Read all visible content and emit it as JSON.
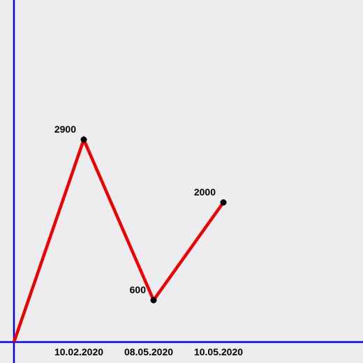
{
  "colors": {
    "background": "#ededef",
    "axis": "#0000ee",
    "line": "#ee0000",
    "point": "#000000",
    "text": "#000000"
  },
  "chart_data": {
    "type": "line",
    "x": [
      "",
      "10.02.2020",
      "08.05.2020",
      "10.05.2020"
    ],
    "series": [
      {
        "values": [
          0,
          2900,
          600,
          2000
        ],
        "data_labels": [
          "",
          "2900",
          "600",
          "2000"
        ]
      }
    ],
    "xlabel": "",
    "ylabel": "",
    "ylim": [
      0,
      4900
    ],
    "grid": false,
    "legend": "none"
  }
}
